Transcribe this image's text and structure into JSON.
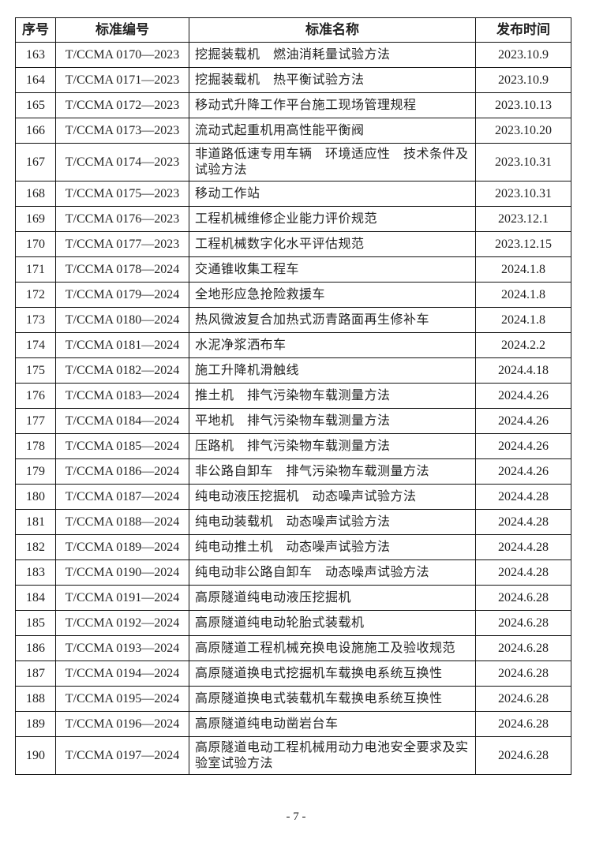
{
  "table": {
    "headers": [
      "序号",
      "标准编号",
      "标准名称",
      "发布时间"
    ],
    "rows": [
      {
        "no": "163",
        "code": "T/CCMA 0170—2023",
        "name": "挖掘装载机　燃油消耗量试验方法",
        "date": "2023.10.9"
      },
      {
        "no": "164",
        "code": "T/CCMA 0171—2023",
        "name": "挖掘装载机　热平衡试验方法",
        "date": "2023.10.9"
      },
      {
        "no": "165",
        "code": "T/CCMA 0172—2023",
        "name": "移动式升降工作平台施工现场管理规程",
        "date": "2023.10.13"
      },
      {
        "no": "166",
        "code": "T/CCMA 0173—2023",
        "name": "流动式起重机用高性能平衡阀",
        "date": "2023.10.20"
      },
      {
        "no": "167",
        "code": "T/CCMA 0174—2023",
        "name": "非道路低速专用车辆　环境适应性　技术条件及试验方法",
        "date": "2023.10.31"
      },
      {
        "no": "168",
        "code": "T/CCMA 0175—2023",
        "name": "移动工作站",
        "date": "2023.10.31"
      },
      {
        "no": "169",
        "code": "T/CCMA 0176—2023",
        "name": "工程机械维修企业能力评价规范",
        "date": "2023.12.1"
      },
      {
        "no": "170",
        "code": "T/CCMA 0177—2023",
        "name": "工程机械数字化水平评估规范",
        "date": "2023.12.15"
      },
      {
        "no": "171",
        "code": "T/CCMA 0178—2024",
        "name": "交通锥收集工程车",
        "date": "2024.1.8"
      },
      {
        "no": "172",
        "code": "T/CCMA 0179—2024",
        "name": "全地形应急抢险救援车",
        "date": "2024.1.8"
      },
      {
        "no": "173",
        "code": "T/CCMA 0180—2024",
        "name": "热风微波复合加热式沥青路面再生修补车",
        "date": "2024.1.8"
      },
      {
        "no": "174",
        "code": "T/CCMA 0181—2024",
        "name": "水泥净浆洒布车",
        "date": "2024.2.2"
      },
      {
        "no": "175",
        "code": "T/CCMA 0182—2024",
        "name": "施工升降机滑触线",
        "date": "2024.4.18"
      },
      {
        "no": "176",
        "code": "T/CCMA 0183—2024",
        "name": "推土机　排气污染物车载测量方法",
        "date": "2024.4.26"
      },
      {
        "no": "177",
        "code": "T/CCMA 0184—2024",
        "name": "平地机　排气污染物车载测量方法",
        "date": "2024.4.26"
      },
      {
        "no": "178",
        "code": "T/CCMA 0185—2024",
        "name": "压路机　排气污染物车载测量方法",
        "date": "2024.4.26"
      },
      {
        "no": "179",
        "code": "T/CCMA 0186—2024",
        "name": "非公路自卸车　排气污染物车载测量方法",
        "date": "2024.4.26"
      },
      {
        "no": "180",
        "code": "T/CCMA 0187—2024",
        "name": "纯电动液压挖掘机　动态噪声试验方法",
        "date": "2024.4.28"
      },
      {
        "no": "181",
        "code": "T/CCMA 0188—2024",
        "name": "纯电动装载机　动态噪声试验方法",
        "date": "2024.4.28"
      },
      {
        "no": "182",
        "code": "T/CCMA 0189—2024",
        "name": "纯电动推土机　动态噪声试验方法",
        "date": "2024.4.28"
      },
      {
        "no": "183",
        "code": "T/CCMA 0190—2024",
        "name": "纯电动非公路自卸车　动态噪声试验方法",
        "date": "2024.4.28"
      },
      {
        "no": "184",
        "code": "T/CCMA 0191—2024",
        "name": "高原隧道纯电动液压挖掘机",
        "date": "2024.6.28"
      },
      {
        "no": "185",
        "code": "T/CCMA 0192—2024",
        "name": "高原隧道纯电动轮胎式装载机",
        "date": "2024.6.28"
      },
      {
        "no": "186",
        "code": "T/CCMA 0193—2024",
        "name": "高原隧道工程机械充换电设施施工及验收规范",
        "date": "2024.6.28"
      },
      {
        "no": "187",
        "code": "T/CCMA 0194—2024",
        "name": "高原隧道换电式挖掘机车载换电系统互换性",
        "date": "2024.6.28"
      },
      {
        "no": "188",
        "code": "T/CCMA 0195—2024",
        "name": "高原隧道换电式装载机车载换电系统互换性",
        "date": "2024.6.28"
      },
      {
        "no": "189",
        "code": "T/CCMA 0196—2024",
        "name": "高原隧道纯电动凿岩台车",
        "date": "2024.6.28"
      },
      {
        "no": "190",
        "code": "T/CCMA 0197—2024",
        "name": "高原隧道电动工程机械用动力电池安全要求及实验室试验方法",
        "date": "2024.6.28"
      }
    ]
  },
  "footer": {
    "page_number": "- 7 -"
  }
}
